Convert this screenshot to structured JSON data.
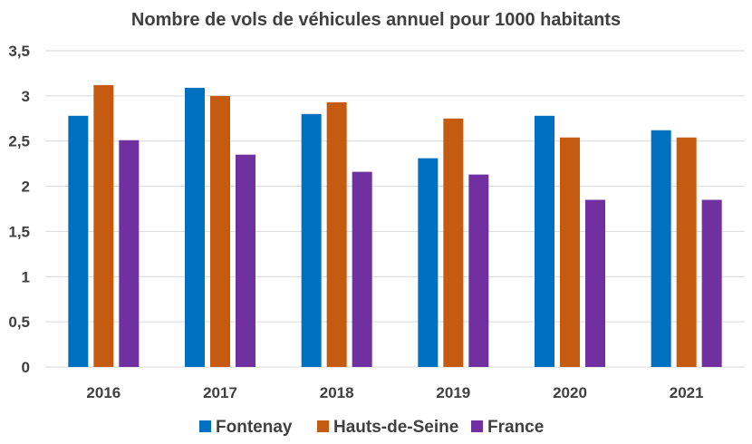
{
  "chart_data": {
    "type": "bar",
    "title": "Nombre de vols de véhicules annuel pour 1000 habitants",
    "xlabel": "",
    "ylabel": "",
    "categories": [
      "2016",
      "2017",
      "2018",
      "2019",
      "2020",
      "2021"
    ],
    "series": [
      {
        "name": "Fontenay",
        "color": "#0070C0",
        "values": [
          2.78,
          3.09,
          2.8,
          2.31,
          2.78,
          2.62
        ]
      },
      {
        "name": "Hauts-de-Seine",
        "color": "#C55A11",
        "values": [
          3.12,
          3.0,
          2.93,
          2.75,
          2.54,
          2.54
        ]
      },
      {
        "name": "France",
        "color": "#7030A0",
        "values": [
          2.51,
          2.35,
          2.16,
          2.13,
          1.85,
          1.85
        ]
      }
    ],
    "ylim": [
      0,
      3.5
    ],
    "yticks": [
      0,
      0.5,
      1,
      1.5,
      2,
      2.5,
      3,
      3.5
    ],
    "ytick_labels": [
      "0",
      "0,5",
      "1",
      "1,5",
      "2",
      "2,5",
      "3",
      "3,5"
    ],
    "grid": true,
    "legend_position": "bottom"
  }
}
